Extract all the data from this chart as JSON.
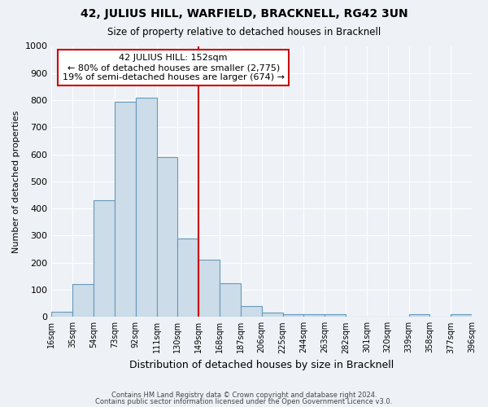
{
  "title": "42, JULIUS HILL, WARFIELD, BRACKNELL, RG42 3UN",
  "subtitle": "Size of property relative to detached houses in Bracknell",
  "xlabel": "Distribution of detached houses by size in Bracknell",
  "ylabel": "Number of detached properties",
  "bar_color": "#ccdce8",
  "bar_edge_color": "#6699bb",
  "background_color": "#eef2f7",
  "grid_color": "#ffffff",
  "annotation_line_color": "#cc0000",
  "annotation_box_text": "42 JULIUS HILL: 152sqm\n← 80% of detached houses are smaller (2,775)\n19% of semi-detached houses are larger (674) →",
  "annotation_box_edge_color": "#cc0000",
  "bin_edges": [
    16,
    35,
    54,
    73,
    92,
    111,
    130,
    149,
    168,
    187,
    206,
    225,
    244,
    263,
    282,
    301,
    320,
    339,
    358,
    377,
    396
  ],
  "bin_labels": [
    "16sqm",
    "35sqm",
    "54sqm",
    "73sqm",
    "92sqm",
    "111sqm",
    "130sqm",
    "149sqm",
    "168sqm",
    "187sqm",
    "206sqm",
    "225sqm",
    "244sqm",
    "263sqm",
    "282sqm",
    "301sqm",
    "320sqm",
    "339sqm",
    "358sqm",
    "377sqm",
    "396sqm"
  ],
  "bar_heights": [
    20,
    120,
    430,
    795,
    810,
    590,
    290,
    210,
    125,
    40,
    15,
    10,
    10,
    10,
    0,
    0,
    0,
    10,
    0,
    10
  ],
  "ylim": [
    0,
    1000
  ],
  "yticks": [
    0,
    100,
    200,
    300,
    400,
    500,
    600,
    700,
    800,
    900,
    1000
  ],
  "vline_x": 149,
  "footer_line1": "Contains HM Land Registry data © Crown copyright and database right 2024.",
  "footer_line2": "Contains public sector information licensed under the Open Government Licence v3.0."
}
